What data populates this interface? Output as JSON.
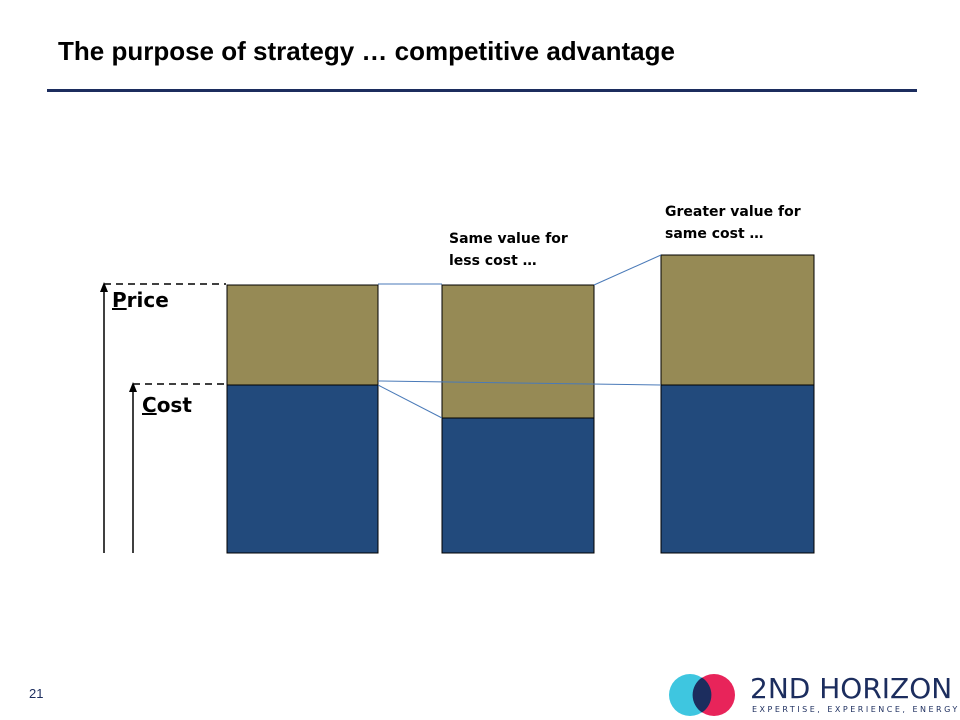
{
  "slide": {
    "title": "The purpose of strategy … competitive advantage",
    "page_number": "21"
  },
  "diagram": {
    "price_label_initial": "P",
    "price_label_rest": "rice",
    "cost_label_initial": "C",
    "cost_label_rest": "ost",
    "annotation_1_line1": "Same value for",
    "annotation_1_line2": "less cost …",
    "annotation_2_line1": "Greater value for",
    "annotation_2_line2": "same cost …",
    "colors": {
      "margin": "#968a55",
      "cost": "#224a7c",
      "connector": "#4a7ab8"
    }
  },
  "logo": {
    "name": "2ND HORIZON",
    "tagline": "EXPERTISE, EXPERIENCE, ENERGY"
  }
}
